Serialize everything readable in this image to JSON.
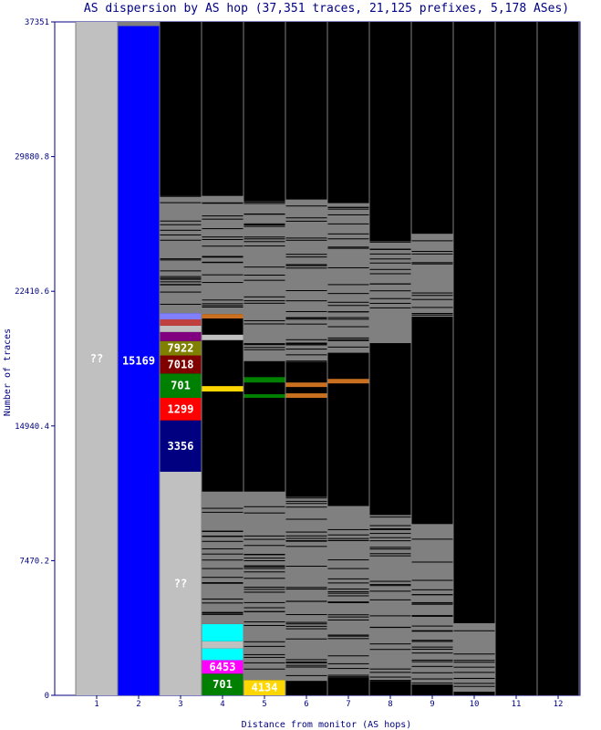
{
  "chart_data": {
    "type": "bar",
    "title": "AS dispersion by AS hop (37,351 traces, 21,125 prefixes, 5,178 ASes)",
    "xlabel": "Distance from monitor (AS hops)",
    "ylabel": "Number of traces",
    "ylim": [
      0,
      37351
    ],
    "y_ticks": [
      "0",
      "7470.2",
      "14940.4",
      "22410.6",
      "29880.8",
      "37351"
    ],
    "y_tick_values": [
      0,
      7470.2,
      14940.4,
      22410.6,
      29880.8,
      37351
    ],
    "categories": [
      "1",
      "2",
      "3",
      "4",
      "5",
      "6",
      "7",
      "8",
      "9",
      "10",
      "11",
      "12"
    ],
    "colors": {
      "background": "#000000",
      "plot_border": "#000080",
      "unknown": "#c0c0c0",
      "other": "#808080",
      "blue": "#0000ff",
      "olive": "#808000",
      "maroon": "#800000",
      "green": "#008000",
      "red": "#ff0000",
      "navy": "#000080",
      "magenta": "#ff00ff",
      "cyan": "#00ffff",
      "gold": "#ffd700",
      "orange": "#c87020",
      "periwinkle": "#8080ff",
      "purple": "#800080",
      "brick": "#c04040"
    },
    "series": [
      {
        "hop": 1,
        "segments": [
          {
            "from": 0,
            "to": 37351,
            "color": "unknown",
            "label": "??"
          }
        ]
      },
      {
        "hop": 2,
        "segments": [
          {
            "from": 0,
            "to": 37121,
            "color": "blue",
            "label": "15169"
          },
          {
            "from": 37121,
            "to": 37351,
            "color": "other",
            "label": ""
          }
        ]
      },
      {
        "hop": 3,
        "segments": [
          {
            "from": 0,
            "to": 12400,
            "color": "unknown",
            "label": "??"
          },
          {
            "from": 12400,
            "to": 15250,
            "color": "navy",
            "label": "3356"
          },
          {
            "from": 15250,
            "to": 16500,
            "color": "red",
            "label": "1299"
          },
          {
            "from": 16500,
            "to": 17850,
            "color": "green",
            "label": "701"
          },
          {
            "from": 17850,
            "to": 18850,
            "color": "maroon",
            "label": "7018"
          },
          {
            "from": 18850,
            "to": 19650,
            "color": "olive",
            "label": "7922"
          },
          {
            "from": 19650,
            "to": 20150,
            "color": "purple",
            "label": ""
          },
          {
            "from": 20150,
            "to": 20500,
            "color": "unknown",
            "label": ""
          },
          {
            "from": 20500,
            "to": 20850,
            "color": "brick",
            "label": ""
          },
          {
            "from": 20850,
            "to": 21200,
            "color": "periwinkle",
            "label": ""
          },
          {
            "from": 21200,
            "to": 27700,
            "color": "other",
            "label": ""
          }
        ]
      },
      {
        "hop": 4,
        "segments": [
          {
            "from": 0,
            "to": 1200,
            "color": "green",
            "label": "701"
          },
          {
            "from": 1200,
            "to": 1950,
            "color": "magenta",
            "label": "6453"
          },
          {
            "from": 1950,
            "to": 2600,
            "color": "cyan",
            "label": ""
          },
          {
            "from": 2600,
            "to": 3000,
            "color": "unknown",
            "label": ""
          },
          {
            "from": 3000,
            "to": 3950,
            "color": "cyan",
            "label": ""
          },
          {
            "from": 3950,
            "to": 11300,
            "color": "other",
            "label": ""
          },
          {
            "from": 16850,
            "to": 17150,
            "color": "gold",
            "label": ""
          },
          {
            "from": 19700,
            "to": 20000,
            "color": "unknown",
            "label": ""
          },
          {
            "from": 20900,
            "to": 21150,
            "color": "orange",
            "label": ""
          },
          {
            "from": 21150,
            "to": 27700,
            "color": "other",
            "label": ""
          }
        ]
      },
      {
        "hop": 5,
        "segments": [
          {
            "from": 0,
            "to": 850,
            "color": "gold",
            "label": "4134"
          },
          {
            "from": 850,
            "to": 11300,
            "color": "other",
            "label": ""
          },
          {
            "from": 17350,
            "to": 17650,
            "color": "green",
            "label": ""
          },
          {
            "from": 16500,
            "to": 16700,
            "color": "green",
            "label": ""
          },
          {
            "from": 18500,
            "to": 27400,
            "color": "other",
            "label": ""
          }
        ]
      },
      {
        "hop": 6,
        "segments": [
          {
            "from": 800,
            "to": 11000,
            "color": "other",
            "label": ""
          },
          {
            "from": 16500,
            "to": 16750,
            "color": "orange",
            "label": ""
          },
          {
            "from": 17100,
            "to": 17350,
            "color": "orange",
            "label": ""
          },
          {
            "from": 18500,
            "to": 27500,
            "color": "other",
            "label": ""
          }
        ]
      },
      {
        "hop": 7,
        "segments": [
          {
            "from": 1000,
            "to": 10500,
            "color": "other",
            "label": ""
          },
          {
            "from": 17300,
            "to": 17550,
            "color": "orange",
            "label": ""
          },
          {
            "from": 19000,
            "to": 27300,
            "color": "other",
            "label": ""
          }
        ]
      },
      {
        "hop": 8,
        "segments": [
          {
            "from": 800,
            "to": 10000,
            "color": "other",
            "label": ""
          },
          {
            "from": 19500,
            "to": 25200,
            "color": "other",
            "label": ""
          }
        ]
      },
      {
        "hop": 9,
        "segments": [
          {
            "from": 600,
            "to": 9500,
            "color": "other",
            "label": ""
          },
          {
            "from": 21000,
            "to": 25600,
            "color": "other",
            "label": ""
          }
        ]
      },
      {
        "hop": 10,
        "segments": [
          {
            "from": 200,
            "to": 4000,
            "color": "other",
            "label": ""
          }
        ]
      },
      {
        "hop": 11,
        "segments": []
      },
      {
        "hop": 12,
        "segments": []
      }
    ],
    "grid": false,
    "legend": "none"
  }
}
